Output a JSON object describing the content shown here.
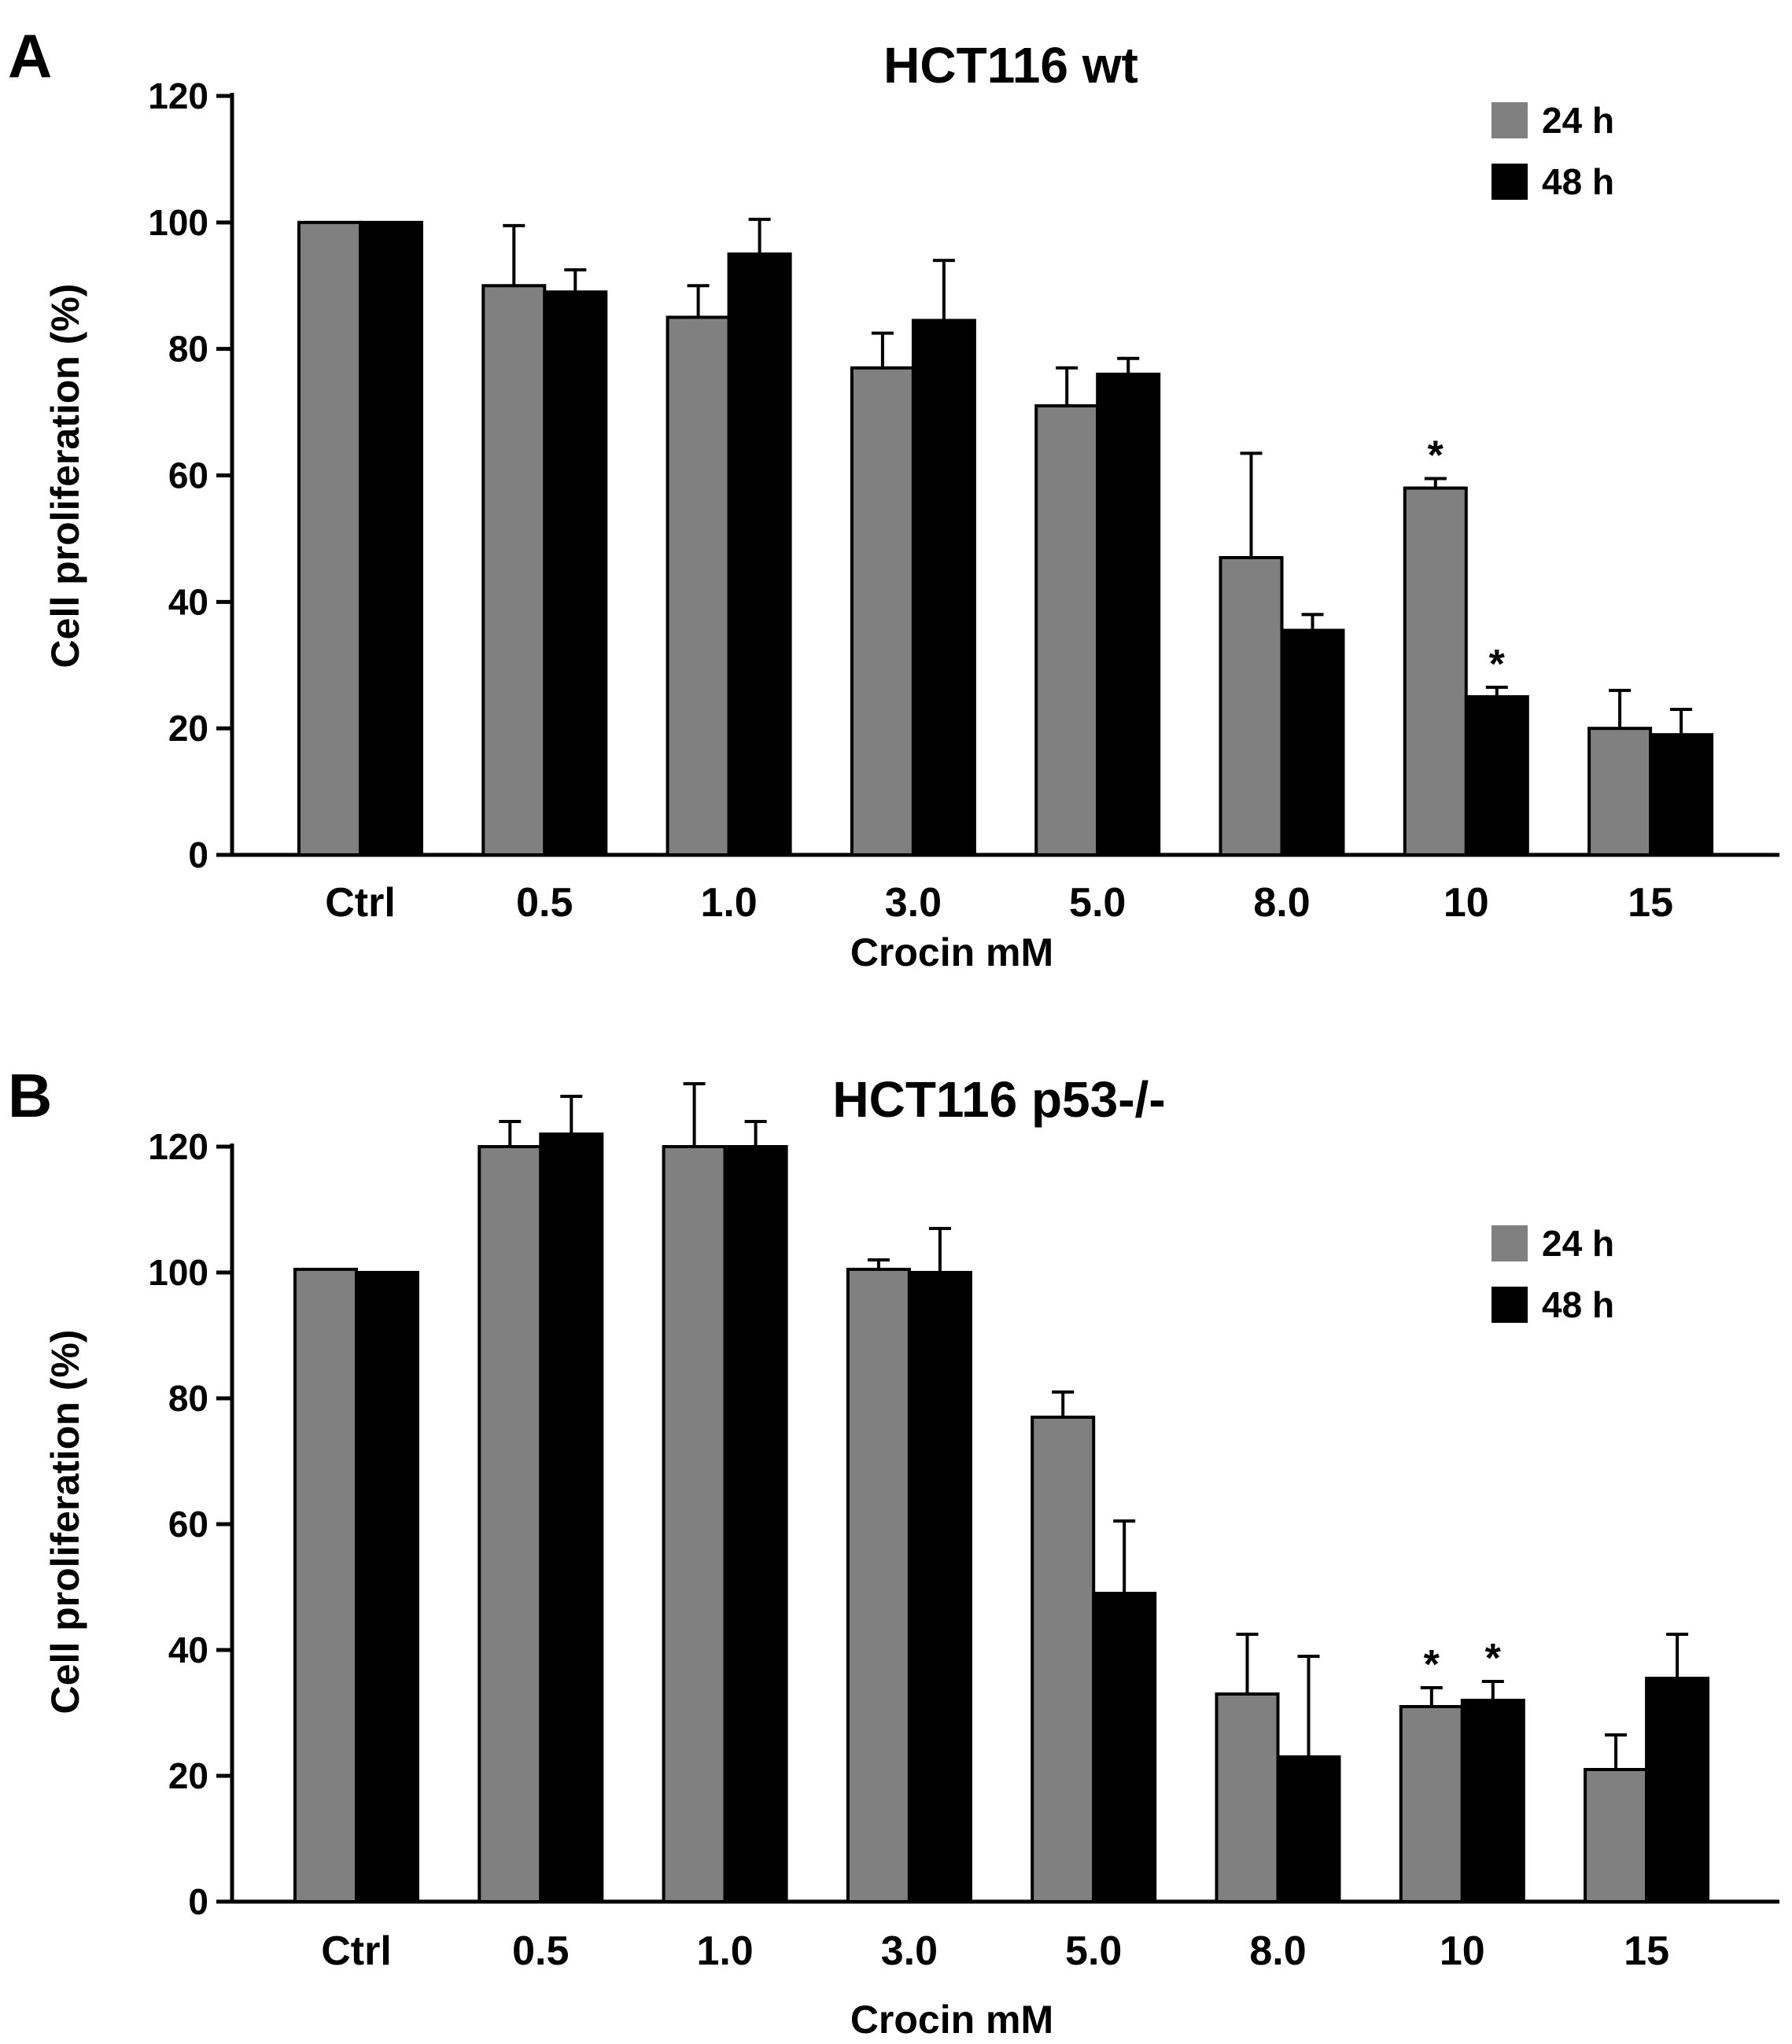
{
  "chart_data": [
    {
      "panel": "A",
      "type": "bar",
      "title": "HCT116 wt",
      "xlabel": "Crocin mM",
      "ylabel": "Cell proliferation (%)",
      "ylim": [
        0,
        120
      ],
      "yticks": [
        0,
        20,
        40,
        60,
        80,
        100,
        120
      ],
      "categories": [
        "Ctrl",
        "0.5",
        "1.0",
        "3.0",
        "5.0",
        "8.0",
        "10",
        "15"
      ],
      "legend_position": "top-right",
      "series": [
        {
          "name": "24 h",
          "color": "#808080",
          "values": [
            100,
            90,
            85,
            77,
            71,
            47,
            58,
            20
          ],
          "errors": [
            0,
            9.5,
            5,
            5.5,
            6,
            16.5,
            1.5,
            6
          ],
          "significant": [
            false,
            false,
            false,
            false,
            false,
            false,
            true,
            false
          ]
        },
        {
          "name": "48 h",
          "color": "#000000",
          "values": [
            100,
            89,
            95,
            84.5,
            76,
            35.5,
            25,
            19
          ],
          "errors": [
            0,
            3.5,
            5.5,
            9.5,
            2.5,
            2.5,
            1.5,
            4
          ],
          "significant": [
            false,
            false,
            false,
            false,
            false,
            false,
            true,
            false
          ]
        }
      ],
      "sig_symbol": "*"
    },
    {
      "panel": "B",
      "type": "bar",
      "title": "HCT116 p53-/-",
      "xlabel": "Crocin mM",
      "ylabel": "Cell proliferation (%)",
      "ylim": [
        0,
        120
      ],
      "yticks": [
        0,
        20,
        40,
        60,
        80,
        100,
        120
      ],
      "categories": [
        "Ctrl",
        "0.5",
        "1.0",
        "3.0",
        "5.0",
        "8.0",
        "10",
        "15"
      ],
      "legend_position": "top-right",
      "series": [
        {
          "name": "24 h",
          "color": "#808080",
          "values": [
            100.5,
            120,
            120,
            100.5,
            77,
            33,
            31,
            21
          ],
          "errors": [
            0,
            4,
            10,
            1.5,
            4,
            9.5,
            3,
            5.5
          ],
          "significant": [
            false,
            false,
            false,
            false,
            false,
            false,
            true,
            false
          ]
        },
        {
          "name": "48 h",
          "color": "#000000",
          "values": [
            100,
            122,
            120,
            100,
            49,
            23,
            32,
            35.5
          ],
          "errors": [
            0,
            6,
            4,
            7,
            11.5,
            16,
            3,
            7
          ],
          "significant": [
            false,
            false,
            false,
            false,
            false,
            false,
            true,
            false
          ]
        }
      ],
      "sig_symbol": "*"
    }
  ]
}
